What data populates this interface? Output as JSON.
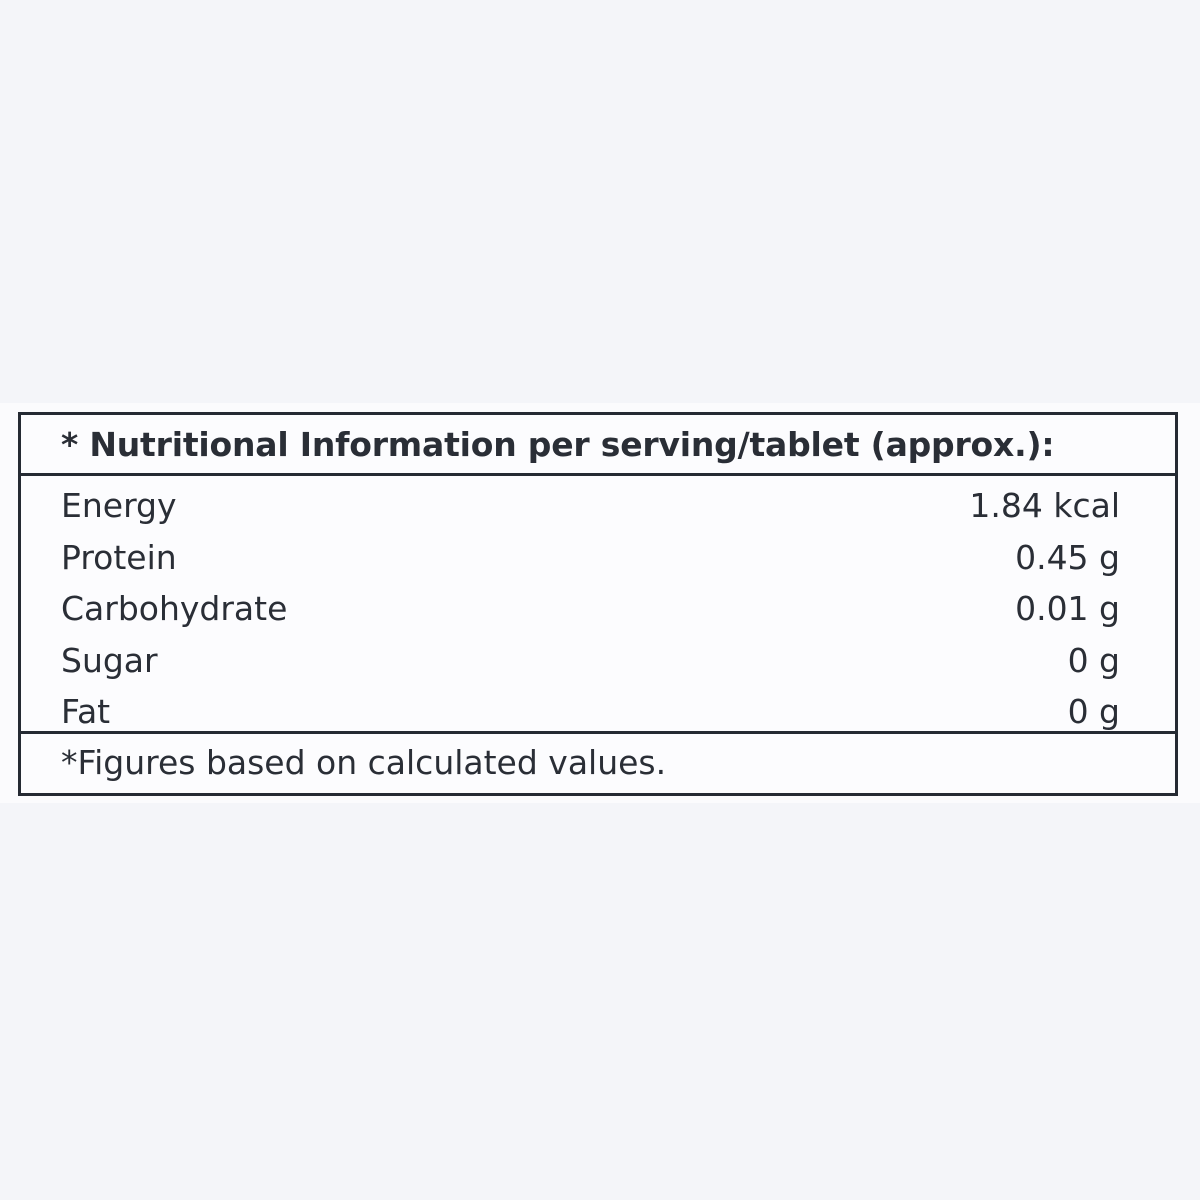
{
  "label": {
    "header": "* Nutritional Information per serving/tablet (approx.):",
    "rows": [
      {
        "name": "Energy",
        "value": "1.84 kcal"
      },
      {
        "name": "Protein",
        "value": "0.45 g"
      },
      {
        "name": "Carbohydrate",
        "value": "0.01 g"
      },
      {
        "name": "Sugar",
        "value": "0 g"
      },
      {
        "name": "Fat",
        "value": "0 g"
      }
    ],
    "footnote": "*Figures based on calculated values."
  },
  "colors": {
    "background": "#f4f5f9",
    "label_background": "#fcfcfe",
    "border": "#252a33",
    "text": "#2a2e36"
  }
}
